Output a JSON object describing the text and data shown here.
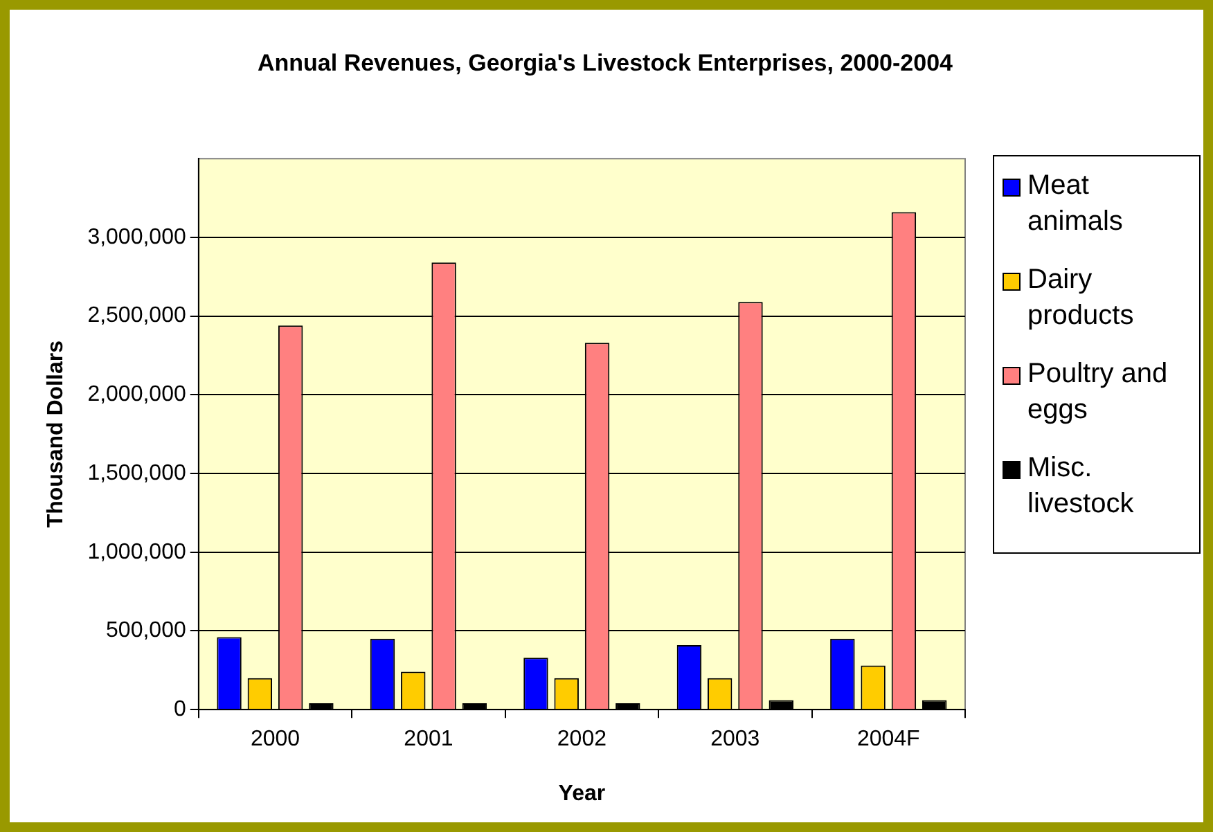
{
  "chart_data": {
    "type": "bar",
    "title": "Annual Revenues, Georgia's Livestock Enterprises, 2000-2004",
    "xlabel": "Year",
    "ylabel": "Thousand Dollars",
    "categories": [
      "2000",
      "2001",
      "2002",
      "2003",
      "2004F"
    ],
    "series": [
      {
        "name": "Meat animals",
        "color": "#0000ff",
        "values": [
          460000,
          450000,
          330000,
          410000,
          450000
        ]
      },
      {
        "name": "Dairy products",
        "color": "#ffcc00",
        "values": [
          200000,
          240000,
          200000,
          200000,
          280000
        ]
      },
      {
        "name": "Poultry and eggs",
        "color": "#ff8080",
        "values": [
          2440000,
          2840000,
          2330000,
          2590000,
          3160000
        ]
      },
      {
        "name": "Misc. livestock",
        "color": "#000000",
        "values": [
          40000,
          40000,
          40000,
          60000,
          60000
        ]
      }
    ],
    "ylim": [
      0,
      3500000
    ],
    "yticks": [
      {
        "value": 0,
        "label": "0"
      },
      {
        "value": 500000,
        "label": "500,000"
      },
      {
        "value": 1000000,
        "label": "1,000,000"
      },
      {
        "value": 1500000,
        "label": "1,500,000"
      },
      {
        "value": 2000000,
        "label": "2,000,000"
      },
      {
        "value": 2500000,
        "label": "2,500,000"
      },
      {
        "value": 3000000,
        "label": "3,000,000"
      }
    ],
    "grid": "y",
    "legend": "right"
  }
}
